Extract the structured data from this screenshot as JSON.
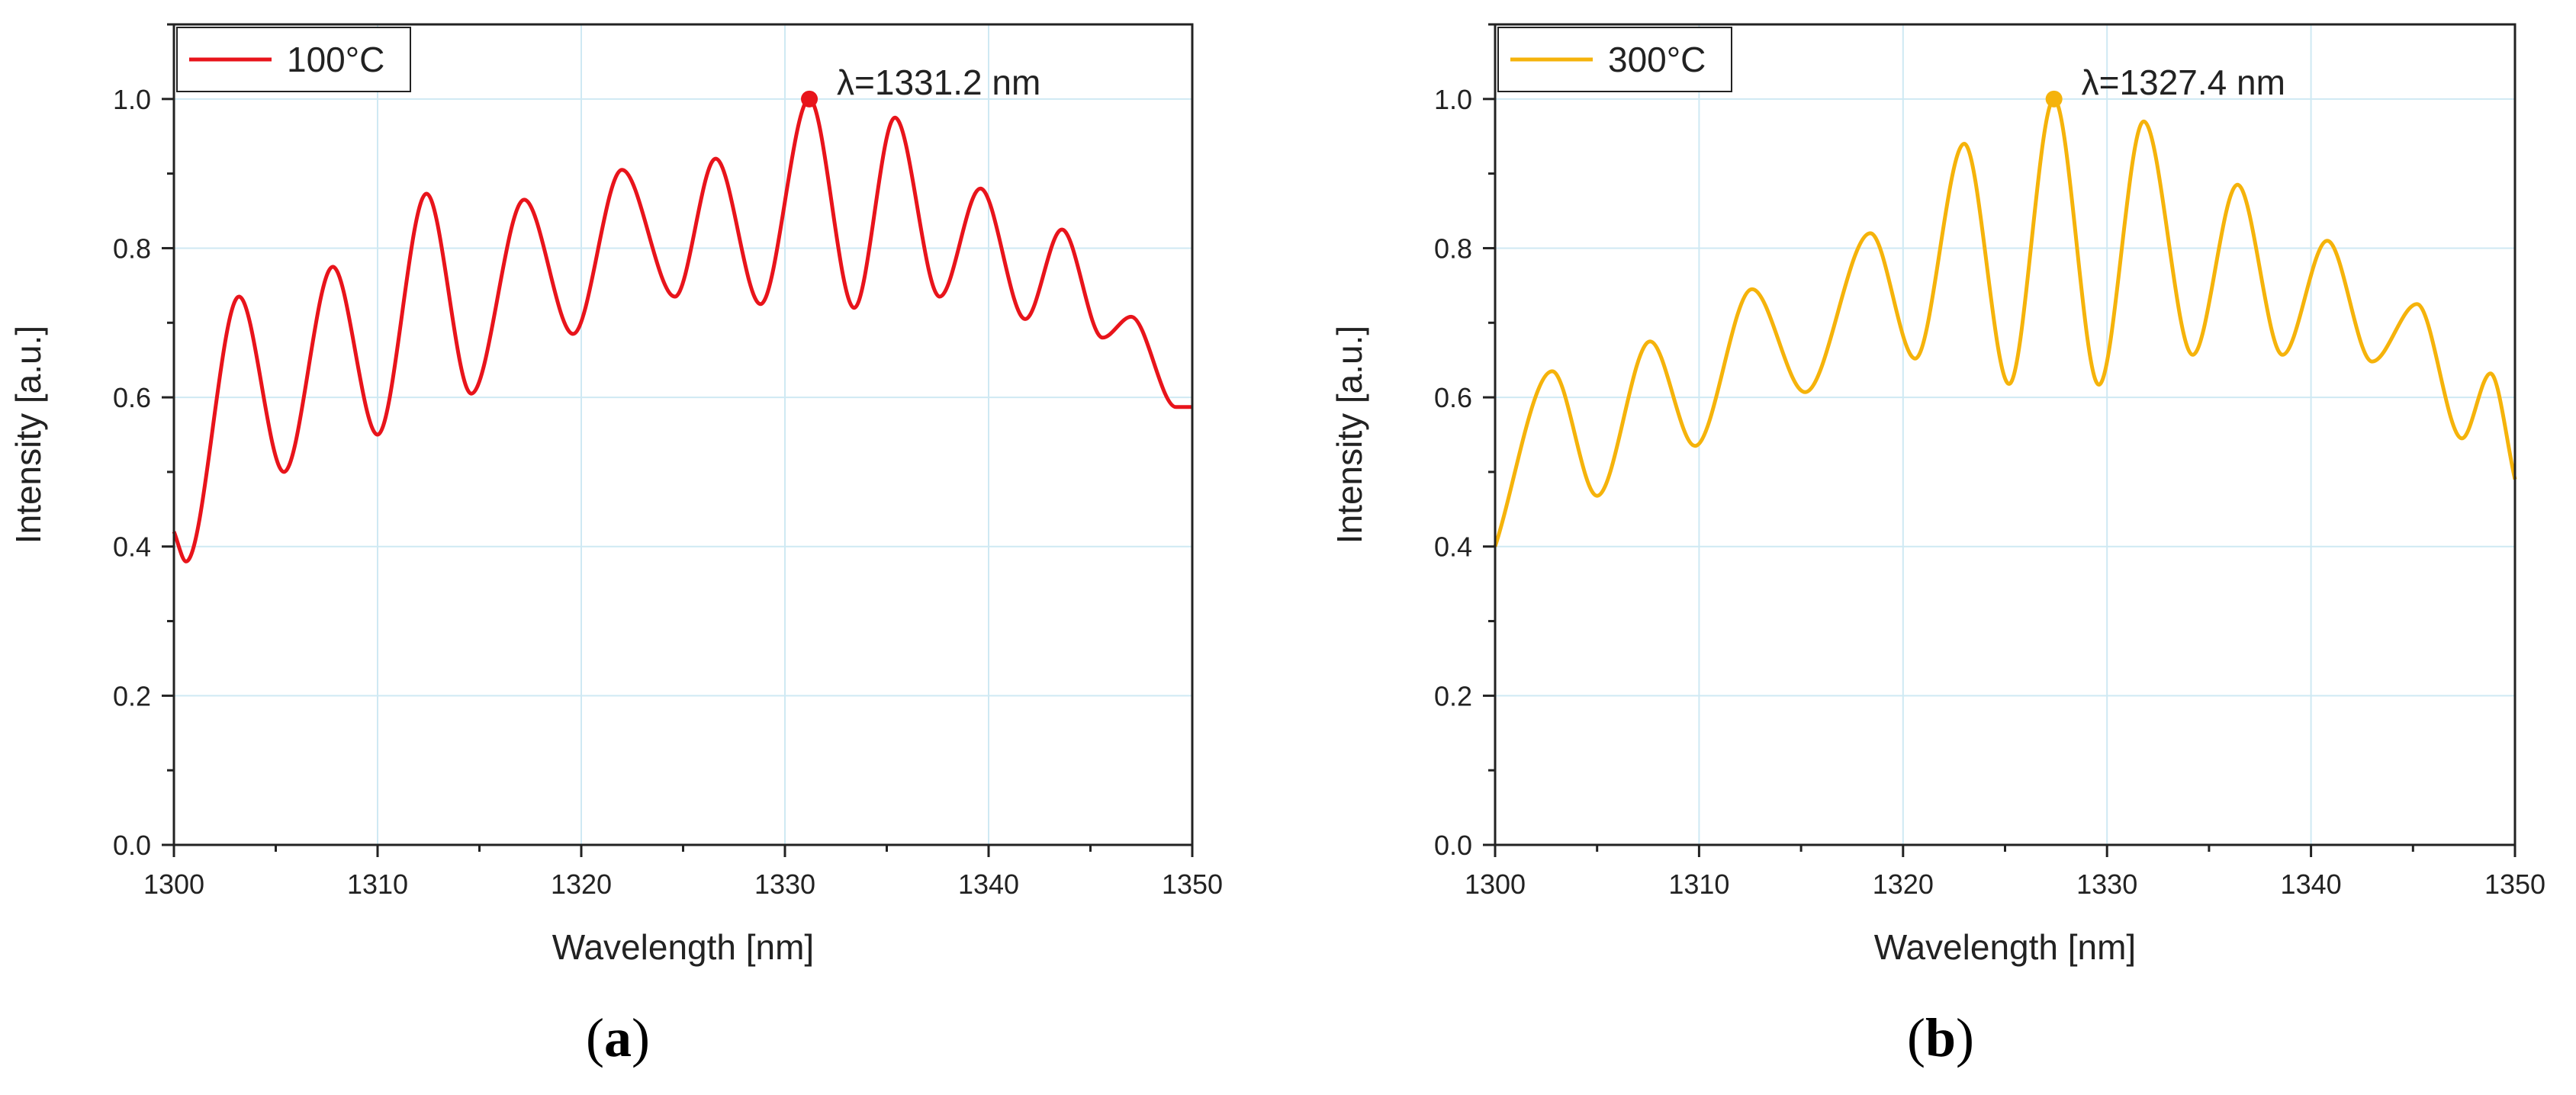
{
  "chart_data": [
    {
      "type": "line",
      "panel_label": "a",
      "title": "",
      "xlabel": "Wavelength [nm]",
      "ylabel": "Intensity [a.u.]",
      "xlim": [
        1300,
        1350
      ],
      "ylim": [
        0,
        1.1
      ],
      "xticks": [
        "1300",
        "1310",
        "1320",
        "1330",
        "1340",
        "1350"
      ],
      "yticks": [
        "0.0",
        "0.2",
        "0.4",
        "0.6",
        "0.8",
        "1.0"
      ],
      "grid": true,
      "legend_position": "top-left",
      "series": [
        {
          "name": "100°C",
          "color": "#e8141b",
          "x": [
            1300,
            1300.6,
            1303.2,
            1305.4,
            1307.8,
            1310,
            1312.4,
            1314.6,
            1317.2,
            1319.6,
            1322,
            1324.6,
            1326.6,
            1328.8,
            1331.2,
            1333.4,
            1335.4,
            1337.6,
            1339.6,
            1341.8,
            1343.6,
            1345.6,
            1347,
            1349.2,
            1350
          ],
          "y": [
            0.42,
            0.38,
            0.735,
            0.5,
            0.775,
            0.55,
            0.873,
            0.605,
            0.865,
            0.685,
            0.905,
            0.735,
            0.92,
            0.725,
            1.0,
            0.72,
            0.975,
            0.735,
            0.88,
            0.705,
            0.825,
            0.68,
            0.708,
            0.587,
            0.587
          ]
        }
      ],
      "annotation": {
        "text": "λ=1331.2 nm",
        "x": 1331.2,
        "y": 1.0
      }
    },
    {
      "type": "line",
      "panel_label": "b",
      "title": "",
      "xlabel": "Wavelength [nm]",
      "ylabel": "Intensity [a.u.]",
      "xlim": [
        1300,
        1350
      ],
      "ylim": [
        0,
        1.1
      ],
      "xticks": [
        "1300",
        "1310",
        "1320",
        "1330",
        "1340",
        "1350"
      ],
      "yticks": [
        "0.0",
        "0.2",
        "0.4",
        "0.6",
        "0.8",
        "1.0"
      ],
      "grid": true,
      "legend_position": "top-left",
      "series": [
        {
          "name": "300°C",
          "color": "#f5b30b",
          "x": [
            1300,
            1302.8,
            1305,
            1307.6,
            1309.8,
            1312.6,
            1315.2,
            1318.4,
            1320.6,
            1323,
            1325.2,
            1327.4,
            1329.6,
            1331.8,
            1334.2,
            1336.4,
            1338.6,
            1340.8,
            1343,
            1345.2,
            1347.4,
            1348.8,
            1350
          ],
          "y": [
            0.4,
            0.635,
            0.468,
            0.675,
            0.535,
            0.745,
            0.607,
            0.82,
            0.652,
            0.94,
            0.618,
            1.0,
            0.617,
            0.97,
            0.657,
            0.885,
            0.657,
            0.81,
            0.648,
            0.725,
            0.545,
            0.632,
            0.49
          ]
        }
      ],
      "annotation": {
        "text": "λ=1327.4 nm",
        "x": 1327.4,
        "y": 1.0
      }
    }
  ]
}
